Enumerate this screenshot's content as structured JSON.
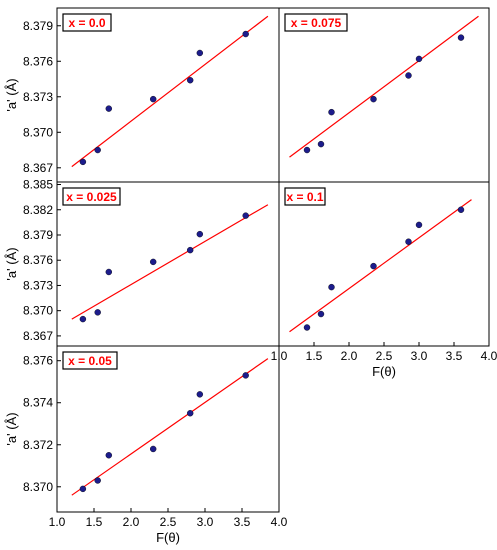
{
  "colors": {
    "fit_line": "#ff0000",
    "marker": "#1c1c8c",
    "legend_border": "#ff0000",
    "legend_text": "#ff0000"
  },
  "chart_data": [
    {
      "type": "scatter",
      "legend": "x = 0.0",
      "xlabel": "",
      "ylabel": "'a' (Å)",
      "xlim": [
        1.0,
        4.0
      ],
      "ylim": [
        8.3658,
        8.3805
      ],
      "yticks": [
        "8.367",
        "8.370",
        "8.373",
        "8.376",
        "8.379"
      ],
      "xticks": [],
      "points": [
        [
          1.35,
          8.3675
        ],
        [
          1.55,
          8.3685
        ],
        [
          1.7,
          8.372
        ],
        [
          2.3,
          8.3728
        ],
        [
          2.8,
          8.3744
        ],
        [
          2.93,
          8.3767
        ],
        [
          3.55,
          8.3783
        ]
      ],
      "fit": [
        [
          1.2,
          8.3671
        ],
        [
          3.85,
          8.3798
        ]
      ]
    },
    {
      "type": "scatter",
      "legend": "x = 0.075",
      "xlabel": "",
      "ylabel": "",
      "xlim": [
        1.0,
        4.0
      ],
      "ylim": [
        8.3658,
        8.3805
      ],
      "yticks": [],
      "xticks": [],
      "points": [
        [
          1.4,
          8.3685
        ],
        [
          1.6,
          8.369
        ],
        [
          1.75,
          8.3717
        ],
        [
          2.35,
          8.3728
        ],
        [
          2.85,
          8.3748
        ],
        [
          3.0,
          8.3762
        ],
        [
          3.6,
          8.378
        ]
      ],
      "fit": [
        [
          1.15,
          8.3679
        ],
        [
          3.85,
          8.3798
        ]
      ]
    },
    {
      "type": "scatter",
      "legend": "x = 0.025",
      "xlabel": "",
      "ylabel": "'a' (Å)",
      "xlim": [
        1.0,
        4.0
      ],
      "ylim": [
        8.3658,
        8.3853
      ],
      "yticks": [
        "8.367",
        "8.370",
        "8.373",
        "8.376",
        "8.379",
        "8.382",
        "8.385"
      ],
      "xticks": [],
      "points": [
        [
          1.35,
          8.369
        ],
        [
          1.55,
          8.3698
        ],
        [
          1.7,
          8.3746
        ],
        [
          2.3,
          8.3758
        ],
        [
          2.8,
          8.3772
        ],
        [
          2.93,
          8.3791
        ],
        [
          3.55,
          8.3813
        ]
      ],
      "fit": [
        [
          1.2,
          8.369
        ],
        [
          3.85,
          8.3826
        ]
      ]
    },
    {
      "type": "scatter",
      "legend": "x = 0.1",
      "xlabel": "F(θ)",
      "ylabel": "",
      "xlim": [
        1.0,
        4.0
      ],
      "ylim": [
        8.3658,
        8.3853
      ],
      "yticks": [],
      "xticks": [
        "1.0",
        "1.5",
        "2.0",
        "2.5",
        "3.0",
        "3.5",
        "4.0"
      ],
      "points": [
        [
          1.4,
          8.368
        ],
        [
          1.6,
          8.3696
        ],
        [
          1.75,
          8.3728
        ],
        [
          2.35,
          8.3753
        ],
        [
          2.85,
          8.3782
        ],
        [
          3.0,
          8.3802
        ],
        [
          3.6,
          8.382
        ]
      ],
      "fit": [
        [
          1.15,
          8.3675
        ],
        [
          3.75,
          8.3832
        ]
      ]
    },
    {
      "type": "scatter",
      "legend": "x = 0.05",
      "xlabel": "F(θ)",
      "ylabel": "'a' (Å)",
      "xlim": [
        1.0,
        4.0
      ],
      "ylim": [
        8.3688,
        8.3767
      ],
      "yticks": [
        "8.370",
        "8.372",
        "8.374",
        "8.376"
      ],
      "xticks": [
        "1.0",
        "1.5",
        "2.0",
        "2.5",
        "3.0",
        "3.5",
        "4.0"
      ],
      "points": [
        [
          1.35,
          8.3699
        ],
        [
          1.55,
          8.3703
        ],
        [
          1.7,
          8.3715
        ],
        [
          2.3,
          8.3718
        ],
        [
          2.8,
          8.3735
        ],
        [
          2.93,
          8.3744
        ],
        [
          3.55,
          8.3753
        ]
      ],
      "fit": [
        [
          1.2,
          8.3696
        ],
        [
          3.85,
          8.3761
        ]
      ]
    }
  ]
}
